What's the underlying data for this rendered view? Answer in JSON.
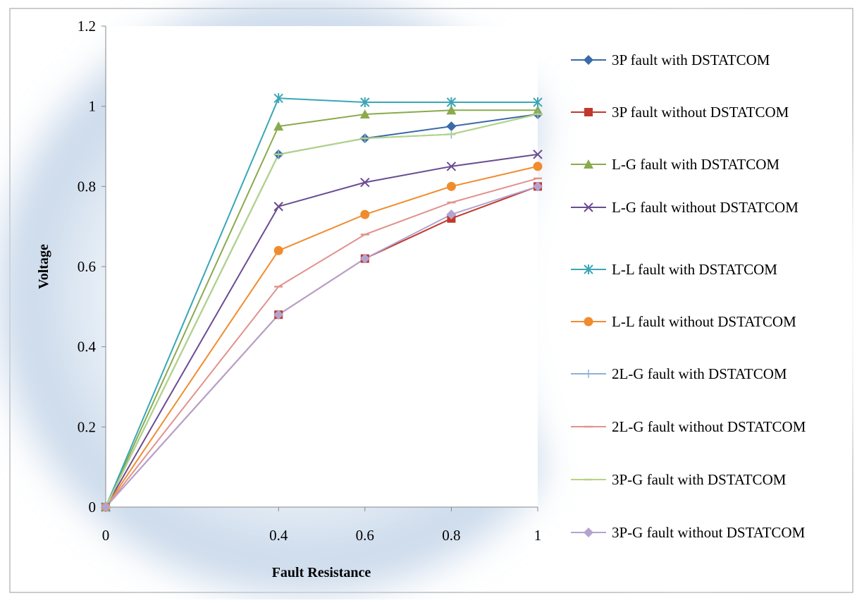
{
  "chart_data": {
    "type": "line",
    "title": "",
    "xlabel": "Fault Resistance",
    "ylabel": "Voltage",
    "x": [
      0,
      0.4,
      0.6,
      0.8,
      1
    ],
    "x_tick_labels": [
      "0",
      "0.4",
      "0.6",
      "0.8",
      "1"
    ],
    "xlim": [
      0,
      1
    ],
    "ylim": [
      0,
      1.2
    ],
    "y_ticks": [
      0,
      0.2,
      0.4,
      0.6,
      0.8,
      1,
      1.2
    ],
    "y_tick_labels": [
      "0",
      "0.2",
      "0.4",
      "0.6",
      "0.8",
      "1",
      "1.2"
    ],
    "grid": false,
    "legend_position": "right",
    "series": [
      {
        "name": "3P fault with DSTATCOM",
        "color": "#3a6aa7",
        "marker": "diamond",
        "values": [
          0,
          0.88,
          0.92,
          0.95,
          0.98
        ]
      },
      {
        "name": "3P fault without DSTATCOM",
        "color": "#c0392b",
        "marker": "square",
        "values": [
          0,
          0.48,
          0.62,
          0.72,
          0.8
        ]
      },
      {
        "name": "L-G fault with DSTATCOM",
        "color": "#8aaa4e",
        "marker": "triangle",
        "values": [
          0,
          0.95,
          0.98,
          0.99,
          0.99
        ]
      },
      {
        "name": "L-G fault without DSTATCOM",
        "color": "#6a4c92",
        "marker": "x",
        "values": [
          0,
          0.75,
          0.81,
          0.85,
          0.88
        ]
      },
      {
        "name": "L-L fault with DSTATCOM",
        "color": "#3aa6b6",
        "marker": "star",
        "values": [
          0,
          1.02,
          1.01,
          1.01,
          1.01
        ]
      },
      {
        "name": "L-L fault without DSTATCOM",
        "color": "#f08c2e",
        "marker": "circle",
        "values": [
          0,
          0.64,
          0.73,
          0.8,
          0.85
        ]
      },
      {
        "name": "2L-G fault with DSTATCOM",
        "color": "#8fb0d8",
        "marker": "plus",
        "values": [
          0,
          0.88,
          0.92,
          0.93,
          0.98
        ]
      },
      {
        "name": "2L-G fault without DSTATCOM",
        "color": "#e2928d",
        "marker": "dash",
        "values": [
          0,
          0.55,
          0.68,
          0.76,
          0.82
        ]
      },
      {
        "name": "3P-G fault with DSTATCOM",
        "color": "#b4d484",
        "marker": "dash",
        "values": [
          0,
          0.88,
          0.92,
          0.93,
          0.98
        ]
      },
      {
        "name": "3P-G fault without DSTATCOM",
        "color": "#b3a3cf",
        "marker": "diamond",
        "values": [
          0,
          0.48,
          0.62,
          0.73,
          0.8
        ]
      }
    ]
  }
}
